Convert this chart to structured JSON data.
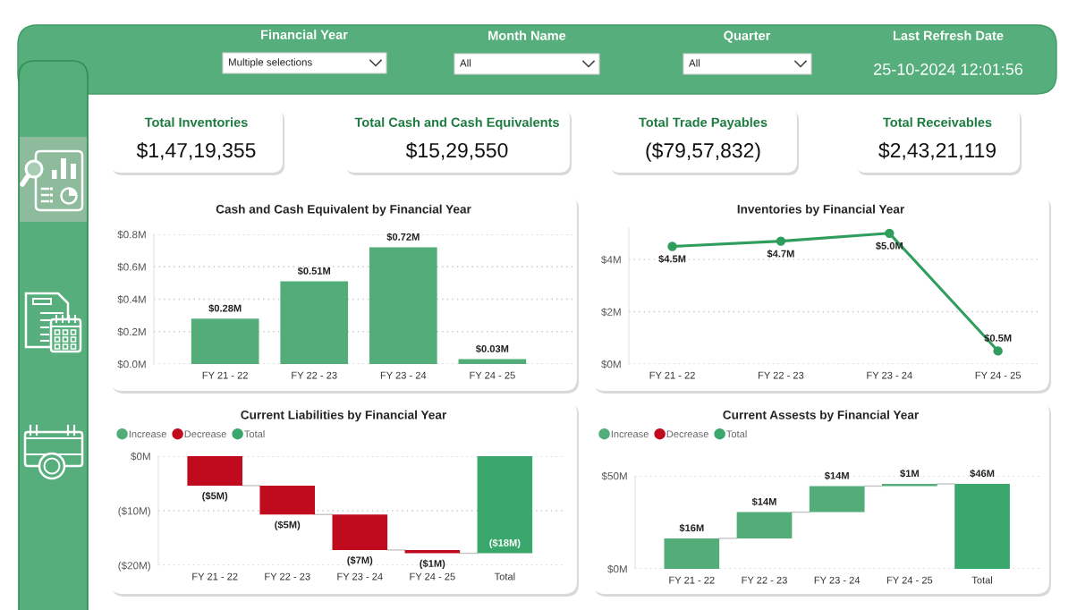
{
  "chart_data": [
    {
      "type": "other",
      "annotations": [
        "Financial Year",
        "Multiple selections",
        "Month Name",
        "All",
        "Quarter",
        "All",
        "Last Refresh Date",
        "25-10-2024 12:01:56"
      ]
    },
    {
      "type": "other",
      "title": "Total Inventories",
      "annotations": [
        "$1,47,19,355"
      ]
    },
    {
      "type": "other",
      "title": "Total Cash and Cash Equivalents",
      "annotations": [
        "$15,29,550"
      ]
    },
    {
      "type": "other",
      "title": "Total Trade Payables",
      "annotations": [
        "($79,57,832)"
      ]
    },
    {
      "type": "other",
      "title": "Total Receivables",
      "annotations": [
        "$2,43,21,119"
      ]
    },
    {
      "type": "bar",
      "title": "Cash and Cash Equivalent by Financial Year",
      "categories": [
        "FY 21 - 22",
        "FY 22 - 23",
        "FY 23 - 24",
        "FY 24 - 25"
      ],
      "values": [
        0.28,
        0.51,
        0.72,
        0.03
      ],
      "color": "#52ad79",
      "value_labels": [
        "$0.28M",
        "$0.51M",
        "$0.72M",
        "$0.03M"
      ],
      "ylim": [
        0,
        0.8
      ],
      "yticks": [
        {
          "value": 0,
          "label": "$0.0M"
        },
        {
          "value": 0.2,
          "label": "$0.2M"
        },
        {
          "value": 0.4,
          "label": "$0.4M"
        },
        {
          "value": 0.6,
          "label": "$0.6M"
        },
        {
          "value": 0.8,
          "label": "$0.8M"
        }
      ],
      "grid": "y"
    },
    {
      "type": "line",
      "title": "Inventories by Financial Year",
      "categories": [
        "FY 21 - 22",
        "FY 22 - 23",
        "FY 23 - 24",
        "FY 24 - 25"
      ],
      "values": [
        4.5,
        4.7,
        5.0,
        0.5
      ],
      "color": "#2f9e5c",
      "marker": "circle",
      "value_labels": [
        "$4.5M",
        "$4.7M",
        "$5.0M",
        "$0.5M"
      ],
      "ylim": [
        0,
        5.2
      ],
      "yticks": [
        {
          "value": 0,
          "label": "$0M"
        },
        {
          "value": 2,
          "label": "$2M"
        },
        {
          "value": 4,
          "label": "$4M"
        }
      ],
      "grid": "y"
    },
    {
      "type": "bar",
      "title": "Current Liabilities by Financial Year",
      "categories": [
        "FY 21 - 22",
        "FY 22 - 23",
        "FY 23 - 24",
        "FY 24 - 25",
        "Total"
      ],
      "series": [
        {
          "name": "Increase",
          "color": "#52ad79",
          "values": [
            null,
            null,
            null,
            null,
            null
          ],
          "base": [
            null,
            null,
            null,
            null,
            null
          ]
        },
        {
          "name": "Decrease",
          "color": "#c00a1e",
          "values": [
            -5.4,
            -5.3,
            -6.5,
            -0.6,
            null
          ],
          "base": [
            0,
            -5.4,
            -10.7,
            -17.2,
            null
          ],
          "value_labels": [
            "($5M)",
            "($5M)",
            "($7M)",
            "($1M)",
            null
          ]
        },
        {
          "name": "Total",
          "color": "#3aa76d",
          "values": [
            null,
            null,
            null,
            null,
            -17.8
          ],
          "base": [
            null,
            null,
            null,
            null,
            0
          ],
          "value_labels": [
            null,
            null,
            null,
            null,
            "($18M)"
          ]
        }
      ],
      "ylim": [
        -20,
        0
      ],
      "yticks": [
        {
          "value": -20,
          "label": "($20M)"
        },
        {
          "value": -10,
          "label": "($10M)"
        },
        {
          "value": 0,
          "label": "$0M"
        }
      ],
      "grid": "y",
      "legend": "top left"
    },
    {
      "type": "bar",
      "title": "Current Assests by Financial Year",
      "categories": [
        "FY 21 - 22",
        "FY 22 - 23",
        "FY 23 - 24",
        "FY 24 - 25",
        "Total"
      ],
      "series": [
        {
          "name": "Increase",
          "color": "#52ad79",
          "values": [
            16.4,
            14.1,
            14.0,
            1.2,
            null
          ],
          "base": [
            0,
            16.4,
            30.5,
            44.5,
            null
          ],
          "value_labels": [
            "$16M",
            "$14M",
            "$14M",
            "$1M",
            null
          ]
        },
        {
          "name": "Decrease",
          "color": "#c00a1e",
          "values": [
            null,
            null,
            null,
            null,
            null
          ],
          "base": [
            null,
            null,
            null,
            null,
            null
          ]
        },
        {
          "name": "Total",
          "color": "#3aa76d",
          "values": [
            null,
            null,
            null,
            null,
            45.7
          ],
          "base": [
            null,
            null,
            null,
            null,
            0
          ],
          "value_labels": [
            null,
            null,
            null,
            null,
            "$46M"
          ]
        }
      ],
      "ylim": [
        0,
        50
      ],
      "yticks": [
        {
          "value": 0,
          "label": "$0M"
        },
        {
          "value": 50,
          "label": "$50M"
        }
      ],
      "grid": "y",
      "legend": "top left"
    }
  ]
}
